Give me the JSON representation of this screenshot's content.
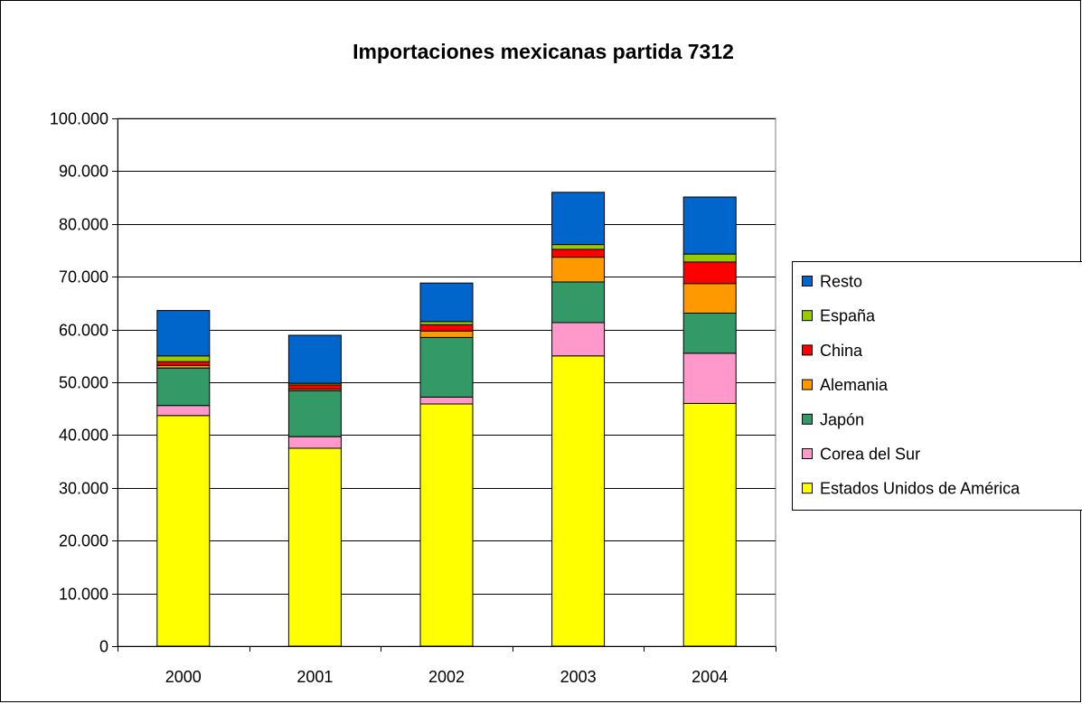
{
  "chart_data": {
    "type": "bar",
    "stacked": true,
    "title": "Importaciones mexicanas partida 7312",
    "xlabel": "",
    "ylabel": "",
    "categories": [
      "2000",
      "2001",
      "2002",
      "2003",
      "2004"
    ],
    "ylim": [
      0,
      100000
    ],
    "yticks": [
      0,
      10000,
      20000,
      30000,
      40000,
      50000,
      60000,
      70000,
      80000,
      90000,
      100000
    ],
    "ytick_labels": [
      "0",
      "10.000",
      "20.000",
      "30.000",
      "40.000",
      "50.000",
      "60.000",
      "70.000",
      "80.000",
      "90.000",
      "100.000"
    ],
    "grid": true,
    "legend_position": "right",
    "series": [
      {
        "name": "Estados Unidos de América",
        "color": "#FFFF00",
        "values": [
          43700,
          37500,
          45900,
          55000,
          46000
        ]
      },
      {
        "name": "Corea del Sur",
        "color": "#FF99CC",
        "values": [
          1900,
          2200,
          1300,
          6300,
          9500
        ]
      },
      {
        "name": "Japón",
        "color": "#339966",
        "values": [
          7100,
          8700,
          11300,
          7700,
          7600
        ]
      },
      {
        "name": "Alemania",
        "color": "#FF9900",
        "values": [
          500,
          300,
          1200,
          4700,
          5600
        ]
      },
      {
        "name": "China",
        "color": "#FF0000",
        "values": [
          700,
          800,
          1200,
          1500,
          4100
        ]
      },
      {
        "name": "España",
        "color": "#99CC00",
        "values": [
          1100,
          300,
          600,
          900,
          1500
        ]
      },
      {
        "name": "Resto",
        "color": "#0066CC",
        "values": [
          8600,
          9100,
          7300,
          9900,
          10800
        ]
      }
    ]
  }
}
